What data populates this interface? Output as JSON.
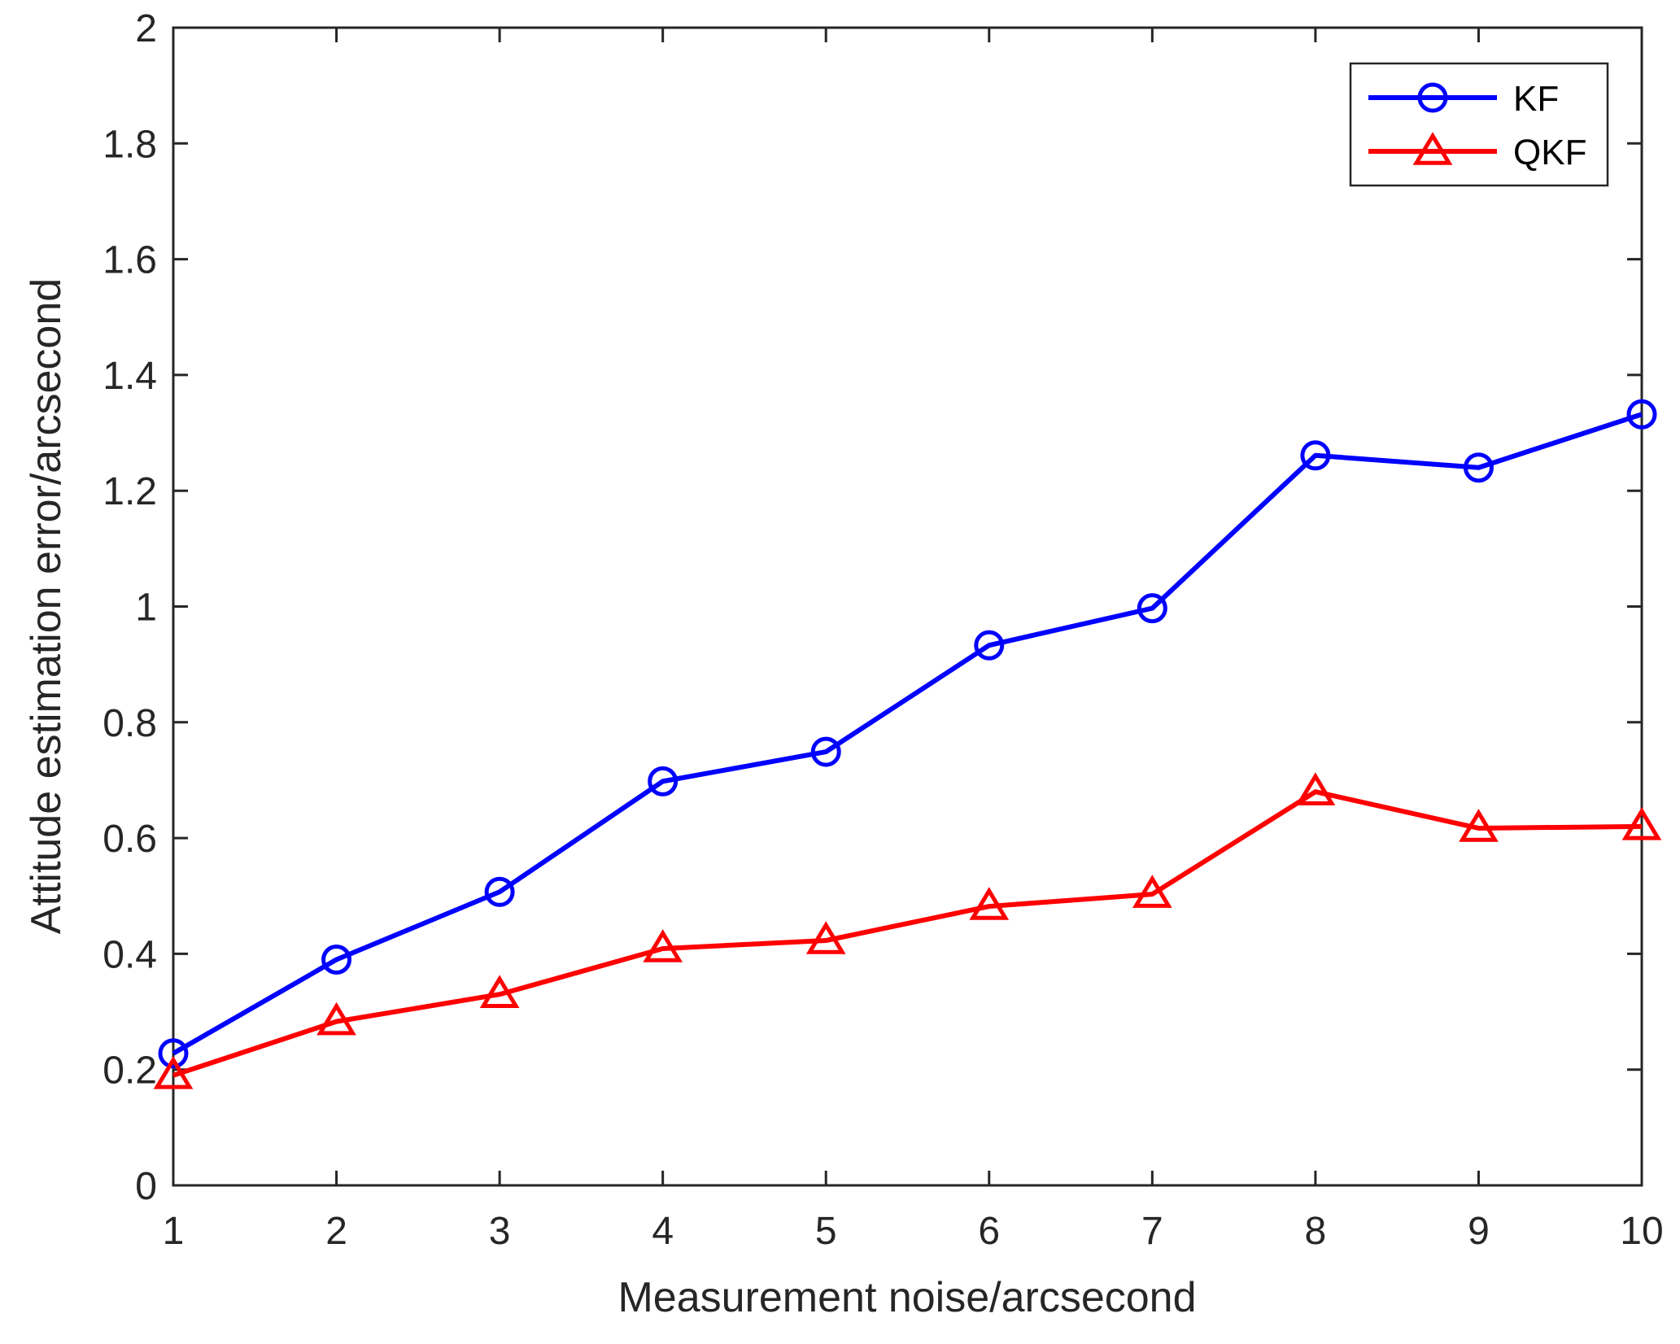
{
  "chart_data": {
    "type": "line",
    "xlabel": "Measurement noise/arcsecond",
    "ylabel": "Attitude estimation error/arcsecond",
    "xlim": [
      1,
      10
    ],
    "ylim": [
      0,
      2
    ],
    "x_ticks": [
      "1",
      "2",
      "3",
      "4",
      "5",
      "6",
      "7",
      "8",
      "9",
      "10"
    ],
    "y_ticks": [
      "0",
      "0.2",
      "0.4",
      "0.6",
      "0.8",
      "1",
      "1.2",
      "1.4",
      "1.6",
      "1.8",
      "2"
    ],
    "x": [
      1,
      2,
      3,
      4,
      5,
      6,
      7,
      8,
      9,
      10
    ],
    "grid": false,
    "legend_position": "top-right",
    "series": [
      {
        "name": "KF",
        "color": "#0000ff",
        "marker": "circle",
        "values": [
          0.228,
          0.39,
          0.507,
          0.698,
          0.749,
          0.933,
          0.997,
          1.261,
          1.24,
          1.332
        ]
      },
      {
        "name": "QKF",
        "color": "#ff0000",
        "marker": "triangle",
        "values": [
          0.19,
          0.283,
          0.33,
          0.409,
          0.423,
          0.482,
          0.503,
          0.68,
          0.617,
          0.62
        ]
      }
    ]
  }
}
